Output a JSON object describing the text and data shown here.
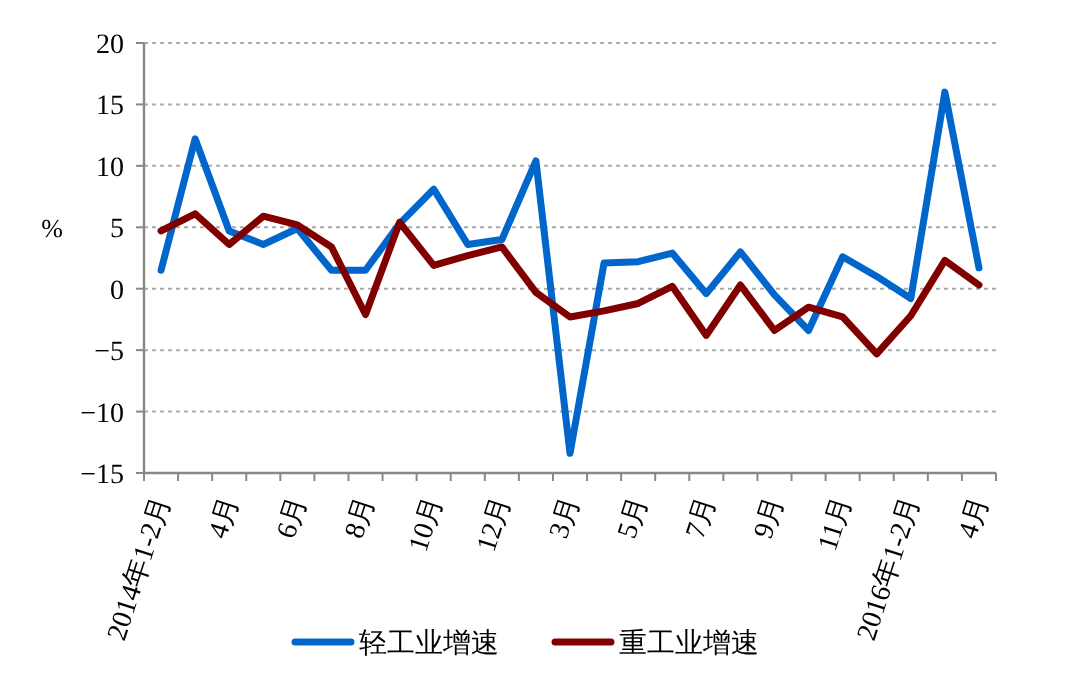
{
  "chart_data": {
    "type": "line",
    "ylabel": "%",
    "categories": [
      "2014年1-2月",
      null,
      "4月",
      null,
      "6月",
      null,
      "8月",
      null,
      "10月",
      null,
      "12月",
      null,
      "3月",
      null,
      "5月",
      null,
      "7月",
      null,
      "9月",
      null,
      "11月",
      null,
      "2016年1-2月",
      null,
      "4月"
    ],
    "series": [
      {
        "name": "轻工业增速",
        "color": "#0066cc",
        "values": [
          1.5,
          12.2,
          4.7,
          3.6,
          4.9,
          1.5,
          1.5,
          5.3,
          8.1,
          3.6,
          4.0,
          10.4,
          -13.4,
          2.1,
          2.2,
          2.9,
          -0.4,
          3.0,
          -0.5,
          -3.4,
          2.6,
          1.0,
          -0.8,
          16.0,
          1.7
        ]
      },
      {
        "name": "重工业增速",
        "color": "#800000",
        "values": [
          4.7,
          6.1,
          3.6,
          5.9,
          5.2,
          3.4,
          -2.1,
          5.4,
          1.9,
          2.7,
          3.4,
          -0.3,
          -2.3,
          -1.8,
          -1.2,
          0.2,
          -3.8,
          0.3,
          -3.4,
          -1.5,
          -2.3,
          -5.3,
          -2.2,
          2.3,
          0.3
        ]
      }
    ],
    "ylim": [
      -15,
      20
    ],
    "yticks": [
      -15,
      -10,
      -5,
      0,
      5,
      10,
      15,
      20
    ],
    "grid": "y",
    "legend": "bottom",
    "line_style": "solid"
  }
}
